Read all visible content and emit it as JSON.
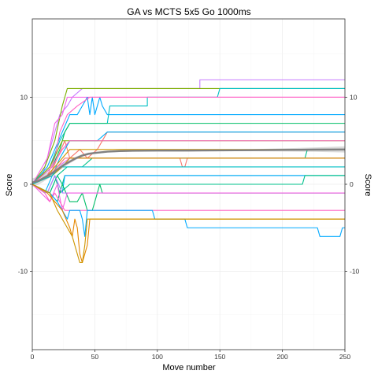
{
  "chart_data": {
    "type": "line",
    "title": "GA vs MCTS 5x5 Go 1000ms",
    "xlabel": "Move number",
    "ylabel": "Score",
    "ylabel_right": "Score",
    "xlim": [
      0,
      250
    ],
    "ylim": [
      -19,
      19
    ],
    "x_ticks": [
      0,
      50,
      100,
      150,
      200,
      250
    ],
    "x_minor_ticks": [
      25,
      75,
      125,
      175,
      225
    ],
    "y_ticks": [
      -10,
      0,
      10
    ],
    "y_minor_ticks": [
      -15,
      -5,
      5,
      15
    ],
    "grid": true,
    "legend": "none",
    "series": [
      {
        "color": "#C77CFF",
        "points": [
          [
            0,
            0
          ],
          [
            8,
            1
          ],
          [
            14,
            4
          ],
          [
            18,
            6
          ],
          [
            22,
            8
          ],
          [
            28,
            9
          ],
          [
            32,
            10
          ],
          [
            40,
            11
          ],
          [
            80,
            11
          ],
          [
            134,
            11
          ],
          [
            134,
            12
          ],
          [
            250,
            12
          ]
        ]
      },
      {
        "color": "#7CAE00",
        "points": [
          [
            0,
            0
          ],
          [
            10,
            2
          ],
          [
            18,
            5
          ],
          [
            24,
            9
          ],
          [
            28,
            11
          ],
          [
            250,
            11
          ]
        ]
      },
      {
        "color": "#F564E3",
        "points": [
          [
            0,
            0
          ],
          [
            12,
            3
          ],
          [
            18,
            7
          ],
          [
            24,
            8
          ],
          [
            28,
            10
          ],
          [
            250,
            10
          ]
        ]
      },
      {
        "color": "#00A9FF",
        "points": [
          [
            0,
            0
          ],
          [
            12,
            2
          ],
          [
            18,
            4
          ],
          [
            24,
            6
          ],
          [
            30,
            8
          ],
          [
            36,
            8
          ],
          [
            40,
            9
          ],
          [
            44,
            10
          ],
          [
            46,
            8
          ],
          [
            48,
            10
          ],
          [
            50,
            8
          ],
          [
            54,
            10
          ],
          [
            56,
            9
          ],
          [
            60,
            8
          ],
          [
            250,
            8
          ]
        ]
      },
      {
        "color": "#00BFC4",
        "points": [
          [
            0,
            0
          ],
          [
            14,
            2
          ],
          [
            22,
            5
          ],
          [
            30,
            7
          ],
          [
            60,
            7
          ],
          [
            62,
            9
          ],
          [
            92,
            9
          ],
          [
            92,
            10
          ],
          [
            148,
            10
          ],
          [
            150,
            11
          ],
          [
            250,
            11
          ]
        ]
      },
      {
        "color": "#00BE67",
        "points": [
          [
            0,
            0
          ],
          [
            16,
            2
          ],
          [
            22,
            4
          ],
          [
            26,
            6
          ],
          [
            30,
            7
          ],
          [
            250,
            7
          ]
        ]
      },
      {
        "color": "#FF61C3",
        "points": [
          [
            0,
            0
          ],
          [
            12,
            1
          ],
          [
            18,
            3
          ],
          [
            22,
            6
          ],
          [
            28,
            8
          ],
          [
            36,
            9
          ],
          [
            46,
            10
          ],
          [
            250,
            10
          ]
        ]
      },
      {
        "color": "#F8766D",
        "points": [
          [
            0,
            0
          ],
          [
            14,
            1
          ],
          [
            20,
            3
          ],
          [
            26,
            5
          ],
          [
            30,
            3
          ],
          [
            38,
            4
          ],
          [
            44,
            3
          ],
          [
            52,
            4
          ],
          [
            60,
            6
          ],
          [
            250,
            6
          ]
        ]
      },
      {
        "color": "#00B0F6",
        "points": [
          [
            0,
            0
          ],
          [
            10,
            -1
          ],
          [
            16,
            1
          ],
          [
            22,
            3
          ],
          [
            26,
            4
          ],
          [
            30,
            5
          ],
          [
            52,
            5
          ],
          [
            60,
            6
          ],
          [
            250,
            6
          ]
        ]
      },
      {
        "color": "#CD9600",
        "points": [
          [
            0,
            0
          ],
          [
            12,
            1
          ],
          [
            18,
            2
          ],
          [
            24,
            3
          ],
          [
            30,
            4
          ],
          [
            250,
            4
          ]
        ]
      },
      {
        "color": "#7CAE00",
        "points": [
          [
            0,
            0
          ],
          [
            14,
            2
          ],
          [
            24,
            5
          ],
          [
            250,
            5
          ]
        ]
      },
      {
        "color": "#FF61C3",
        "points": [
          [
            0,
            0
          ],
          [
            16,
            2
          ],
          [
            24,
            4
          ],
          [
            30,
            5
          ],
          [
            250,
            5
          ]
        ]
      },
      {
        "color": "#00C08B",
        "points": [
          [
            0,
            0
          ],
          [
            14,
            -1
          ],
          [
            20,
            1
          ],
          [
            28,
            2
          ],
          [
            40,
            2
          ],
          [
            48,
            3
          ],
          [
            58,
            3
          ],
          [
            64,
            3
          ],
          [
            218,
            3
          ],
          [
            220,
            4
          ],
          [
            250,
            4
          ]
        ]
      },
      {
        "color": "#E76BF3",
        "points": [
          [
            0,
            0
          ],
          [
            14,
            1
          ],
          [
            20,
            2
          ],
          [
            30,
            3
          ],
          [
            250,
            3
          ]
        ]
      },
      {
        "color": "#F8766D",
        "points": [
          [
            0,
            0
          ],
          [
            14,
            1
          ],
          [
            20,
            2
          ],
          [
            26,
            3
          ],
          [
            114,
            3
          ],
          [
            118,
            3
          ],
          [
            120,
            2
          ],
          [
            122,
            2
          ],
          [
            124,
            3
          ],
          [
            250,
            3
          ]
        ]
      },
      {
        "color": "#CD9600",
        "points": [
          [
            0,
            0
          ],
          [
            16,
            1
          ],
          [
            24,
            2
          ],
          [
            30,
            3
          ],
          [
            250,
            3
          ]
        ]
      },
      {
        "color": "#00BF7D",
        "points": [
          [
            0,
            0
          ],
          [
            14,
            -1
          ],
          [
            20,
            1
          ],
          [
            24,
            0
          ],
          [
            26,
            1
          ],
          [
            250,
            1
          ]
        ]
      },
      {
        "color": "#00A9FF",
        "points": [
          [
            0,
            0
          ],
          [
            12,
            -1
          ],
          [
            18,
            1
          ],
          [
            24,
            -1
          ],
          [
            26,
            1
          ],
          [
            250,
            1
          ]
        ]
      },
      {
        "color": "#00BFC4",
        "points": [
          [
            0,
            0
          ],
          [
            16,
            1
          ],
          [
            22,
            2
          ],
          [
            250,
            2
          ]
        ]
      },
      {
        "color": "#00C08B",
        "points": [
          [
            0,
            0
          ],
          [
            12,
            -1
          ],
          [
            18,
            1
          ],
          [
            22,
            -1
          ],
          [
            30,
            0
          ],
          [
            216,
            0
          ],
          [
            218,
            1
          ],
          [
            250,
            1
          ]
        ]
      },
      {
        "color": "#00BE67",
        "points": [
          [
            0,
            0
          ],
          [
            14,
            -1
          ],
          [
            20,
            -2
          ],
          [
            24,
            0
          ],
          [
            30,
            -2
          ],
          [
            36,
            -2
          ],
          [
            40,
            -1
          ],
          [
            44,
            -3
          ],
          [
            48,
            -3
          ],
          [
            50,
            -2
          ],
          [
            52,
            -1
          ],
          [
            54,
            0
          ],
          [
            56,
            -1
          ],
          [
            250,
            -1
          ]
        ]
      },
      {
        "color": "#C77CFF",
        "points": [
          [
            0,
            0
          ],
          [
            12,
            -1
          ],
          [
            18,
            1
          ],
          [
            24,
            -1
          ],
          [
            28,
            -1
          ],
          [
            32,
            -1
          ],
          [
            250,
            -1
          ]
        ]
      },
      {
        "color": "#F564E3",
        "points": [
          [
            0,
            0
          ],
          [
            14,
            -2
          ],
          [
            20,
            0
          ],
          [
            24,
            -3
          ],
          [
            28,
            -1
          ],
          [
            32,
            -1
          ],
          [
            250,
            -1
          ]
        ]
      },
      {
        "color": "#FF61C3",
        "points": [
          [
            0,
            0
          ],
          [
            10,
            -1
          ],
          [
            14,
            -2
          ],
          [
            18,
            -1
          ],
          [
            22,
            -2
          ],
          [
            26,
            -3
          ],
          [
            30,
            -3
          ],
          [
            34,
            -3
          ],
          [
            250,
            -3
          ]
        ]
      },
      {
        "color": "#00A9FF",
        "points": [
          [
            0,
            0
          ],
          [
            14,
            -1
          ],
          [
            20,
            -2
          ],
          [
            24,
            -3
          ],
          [
            28,
            -4
          ],
          [
            30,
            -3
          ],
          [
            38,
            -3
          ],
          [
            40,
            -4
          ],
          [
            42,
            -6
          ],
          [
            44,
            -3
          ],
          [
            96,
            -3
          ],
          [
            98,
            -4
          ],
          [
            122,
            -4
          ],
          [
            124,
            -5
          ],
          [
            228,
            -5
          ],
          [
            230,
            -6
          ],
          [
            246,
            -6
          ],
          [
            248,
            -5
          ],
          [
            250,
            -5
          ]
        ]
      },
      {
        "color": "#E58700",
        "points": [
          [
            0,
            0
          ],
          [
            12,
            -1
          ],
          [
            18,
            -2
          ],
          [
            24,
            -3
          ],
          [
            30,
            -5
          ],
          [
            32,
            -6
          ],
          [
            34,
            -4
          ],
          [
            36,
            -5
          ],
          [
            38,
            -8
          ],
          [
            40,
            -9
          ],
          [
            42,
            -8
          ],
          [
            44,
            -7
          ],
          [
            46,
            -4
          ],
          [
            250,
            -4
          ]
        ]
      },
      {
        "color": "#CD9600",
        "points": [
          [
            0,
            0
          ],
          [
            14,
            -1
          ],
          [
            20,
            -3
          ],
          [
            24,
            -4
          ],
          [
            28,
            -5
          ],
          [
            32,
            -6
          ],
          [
            36,
            -8
          ],
          [
            38,
            -9
          ],
          [
            40,
            -9
          ],
          [
            42,
            -7
          ],
          [
            44,
            -4
          ],
          [
            250,
            -4
          ]
        ]
      }
    ],
    "trend": {
      "color": "#808080",
      "points": [
        [
          0,
          0.2
        ],
        [
          5,
          0.4
        ],
        [
          10,
          0.8
        ],
        [
          15,
          1.2
        ],
        [
          20,
          1.7
        ],
        [
          25,
          2.2
        ],
        [
          30,
          2.6
        ],
        [
          35,
          3.0
        ],
        [
          40,
          3.3
        ],
        [
          45,
          3.5
        ],
        [
          50,
          3.6
        ],
        [
          60,
          3.75
        ],
        [
          70,
          3.82
        ],
        [
          80,
          3.85
        ],
        [
          100,
          3.87
        ],
        [
          125,
          3.88
        ],
        [
          150,
          3.9
        ],
        [
          175,
          3.92
        ],
        [
          200,
          3.95
        ],
        [
          225,
          3.98
        ],
        [
          250,
          4.0
        ]
      ],
      "band_halfwidth": [
        0.5,
        0.45,
        0.4,
        0.35,
        0.3,
        0.25,
        0.2,
        0.18,
        0.16,
        0.14,
        0.12,
        0.1,
        0.1,
        0.1,
        0.1,
        0.1,
        0.1,
        0.12,
        0.18,
        0.25,
        0.35
      ]
    }
  }
}
